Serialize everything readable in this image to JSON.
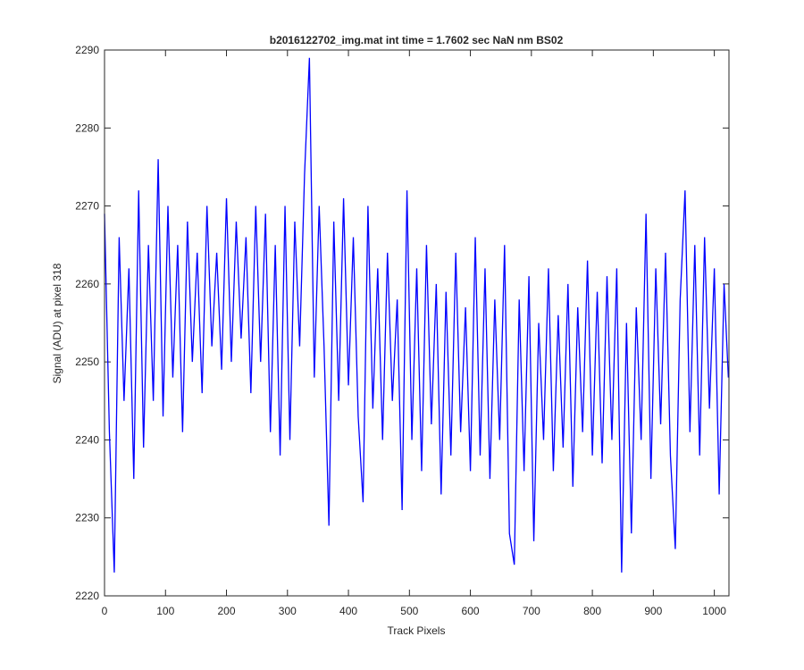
{
  "chart_data": {
    "type": "line",
    "title": "b2016122702_img.mat int time = 1.7602 sec  NaN nm BS02",
    "x_label": "Track Pixels",
    "y_label": "Signal (ADU) at pixel 318",
    "xlim": [
      0,
      1024
    ],
    "ylim": [
      2220,
      2290
    ],
    "xticks": [
      0,
      100,
      200,
      300,
      400,
      500,
      600,
      700,
      800,
      900,
      1000
    ],
    "yticks": [
      2220,
      2230,
      2240,
      2250,
      2260,
      2270,
      2280,
      2290
    ],
    "grid": false,
    "series": [
      {
        "color": "#0000ff",
        "x": [
          0,
          8,
          16,
          24,
          32,
          40,
          48,
          56,
          64,
          72,
          80,
          88,
          96,
          104,
          112,
          120,
          128,
          136,
          144,
          152,
          160,
          168,
          176,
          184,
          192,
          200,
          208,
          216,
          224,
          232,
          240,
          248,
          256,
          264,
          272,
          280,
          288,
          296,
          304,
          312,
          320,
          328,
          336,
          344,
          352,
          360,
          368,
          376,
          384,
          392,
          400,
          408,
          416,
          424,
          432,
          440,
          448,
          456,
          464,
          472,
          480,
          488,
          496,
          504,
          512,
          520,
          528,
          536,
          544,
          552,
          560,
          568,
          576,
          584,
          592,
          600,
          608,
          616,
          624,
          632,
          640,
          648,
          656,
          664,
          672,
          680,
          688,
          696,
          704,
          712,
          720,
          728,
          736,
          744,
          752,
          760,
          768,
          776,
          784,
          792,
          800,
          808,
          816,
          824,
          832,
          840,
          848,
          856,
          864,
          872,
          880,
          888,
          896,
          904,
          912,
          920,
          928,
          936,
          944,
          952,
          960,
          968,
          976,
          984,
          992,
          1000,
          1008,
          1016,
          1023
        ],
        "values": [
          2269,
          2241,
          2223,
          2266,
          2245,
          2262,
          2235,
          2272,
          2239,
          2265,
          2245,
          2276,
          2243,
          2270,
          2248,
          2265,
          2241,
          2268,
          2250,
          2264,
          2246,
          2270,
          2252,
          2264,
          2249,
          2271,
          2250,
          2268,
          2253,
          2266,
          2246,
          2270,
          2250,
          2269,
          2241,
          2265,
          2238,
          2270,
          2240,
          2268,
          2252,
          2274,
          2289,
          2248,
          2270,
          2252,
          2229,
          2268,
          2245,
          2271,
          2247,
          2266,
          2243,
          2232,
          2270,
          2244,
          2262,
          2240,
          2264,
          2245,
          2258,
          2231,
          2272,
          2240,
          2262,
          2236,
          2265,
          2242,
          2260,
          2233,
          2259,
          2238,
          2264,
          2241,
          2257,
          2236,
          2266,
          2238,
          2262,
          2235,
          2258,
          2240,
          2265,
          2228,
          2224,
          2258,
          2236,
          2261,
          2227,
          2255,
          2240,
          2262,
          2236,
          2256,
          2239,
          2260,
          2234,
          2257,
          2241,
          2263,
          2238,
          2259,
          2237,
          2261,
          2240,
          2262,
          2223,
          2255,
          2228,
          2257,
          2240,
          2269,
          2235,
          2262,
          2242,
          2264,
          2238,
          2226,
          2258,
          2272,
          2241,
          2265,
          2238,
          2266,
          2244,
          2262,
          2233,
          2260,
          2248
        ]
      }
    ]
  }
}
